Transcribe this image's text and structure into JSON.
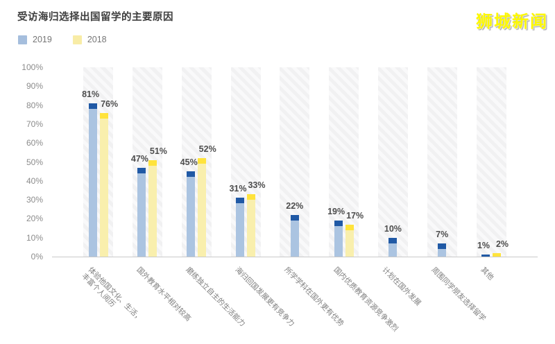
{
  "title": "受访海归选择出国留学的主要原因",
  "logo": "狮城新闻",
  "legend": {
    "items": [
      {
        "label": "2019",
        "color": "#a5bedd"
      },
      {
        "label": "2018",
        "color": "#f8eca6"
      }
    ]
  },
  "colors": {
    "bar2019_body": "#abc4e1",
    "bar2019_cap": "#2059a5",
    "bar2018_body": "#f9efad",
    "bar2018_cap": "#ffe33c",
    "hatch_base": "#f1f1f2",
    "hatch_stripe": "#f9f9fa",
    "axis_line": "#c9c9c9",
    "axis_text": "#8b8b8b",
    "value_text": "#4d4d4d",
    "category_text": "#7f7f7f",
    "title_text": "#3d3d3d",
    "logo_yellow": "#fdf800"
  },
  "chart_data": {
    "type": "bar",
    "title": "受访海归选择出国留学的主要原因",
    "unit": "%",
    "categories": [
      "体验他国文化、生活，\n丰富个人阅历",
      "国外教育水平相对较高",
      "磨练独立自主的生活能力",
      "海归回国发展更有竞争力",
      "所学学科在国外更有优势",
      "国内优质教育资源竞争激烈",
      "计划在国外发展",
      "周围同学朋友选择留学",
      "其他"
    ],
    "series": [
      {
        "name": "2019",
        "values": [
          81,
          47,
          45,
          31,
          22,
          19,
          10,
          7,
          1
        ]
      },
      {
        "name": "2018",
        "values": [
          76,
          51,
          52,
          33,
          null,
          17,
          null,
          null,
          2
        ]
      }
    ],
    "ylim": [
      0,
      100
    ],
    "ytick_step": 10,
    "yticks": [
      "0%",
      "10%",
      "20%",
      "30%",
      "40%",
      "50%",
      "60%",
      "70%",
      "80%",
      "90%",
      "100%"
    ],
    "grid": false,
    "legend_position": "top-left"
  }
}
